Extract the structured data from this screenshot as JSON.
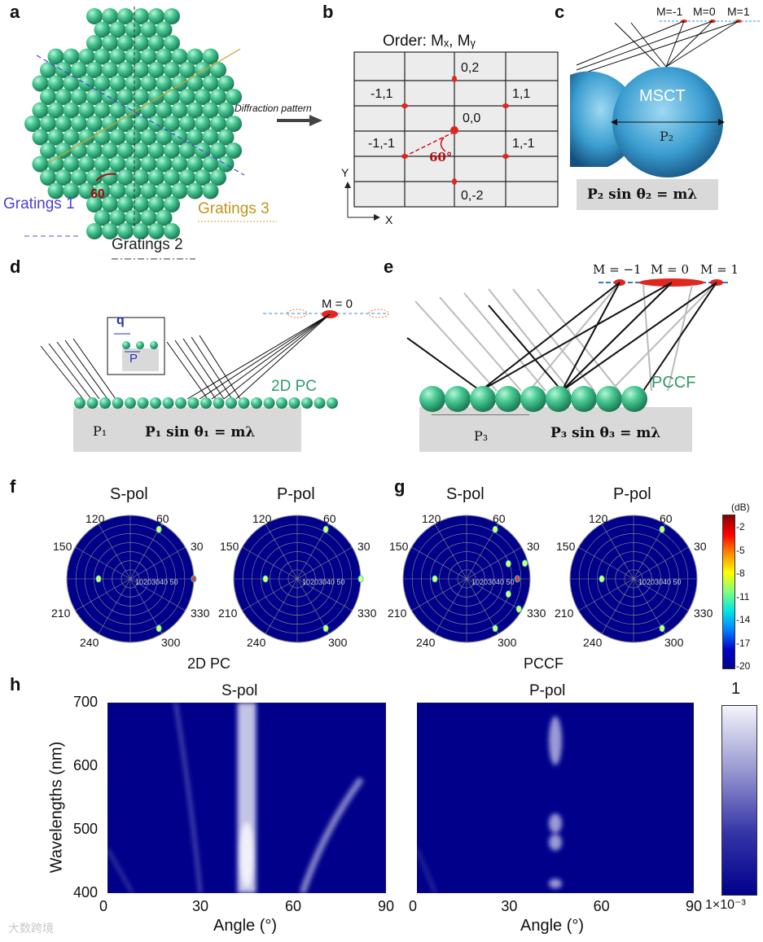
{
  "panels": {
    "a": "a",
    "b": "b",
    "c": "c",
    "d": "d",
    "e": "e",
    "f": "f",
    "g": "g",
    "h": "h"
  },
  "a": {
    "gratings1": "Gratings 1",
    "gratings2": "Gratings 2",
    "gratings3": "Gratings 3",
    "angle": "60"
  },
  "arrow_label": "Diffraction pattern",
  "b": {
    "title": "Order: Mₓ, Mᵧ",
    "points": [
      "0,2",
      "-1,1",
      "1,1",
      "0,0",
      "-1,-1",
      "1,-1",
      "0,-2"
    ],
    "angle": "60°",
    "yaxis": "Y",
    "xaxis": "X"
  },
  "c": {
    "m_labels": [
      "M=-1",
      "M=0",
      "M=1"
    ],
    "sphere": "MSCT",
    "period": "P₂",
    "equation": "P₂ sin θ₂ = mλ"
  },
  "d": {
    "m_label": "M = 0",
    "q": "q",
    "P": "P",
    "pc": "2D PC",
    "period": "P₁",
    "equation": "P₁ sin θ₁ = mλ"
  },
  "e": {
    "m_labels": [
      "M = −1",
      "M = 0",
      "M = 1"
    ],
    "pccf": "PCCF",
    "period": "P₃",
    "equation": "P₃ sin θ₃ = mλ"
  },
  "polar": {
    "titles": [
      "S-pol",
      "P-pol",
      "S-pol",
      "P-pol"
    ],
    "angles": [
      "120",
      "60",
      "150",
      "30",
      "210",
      "330",
      "240",
      "300"
    ],
    "radial": "10203040 50",
    "captions": [
      "2D PC",
      "PCCF"
    ],
    "colorbar": {
      "unit": "(dB)",
      "ticks": [
        "-2",
        "-5",
        "-8",
        "-11",
        "-14",
        "-17",
        "-20"
      ]
    }
  },
  "chart_data": [
    {
      "type": "heatmap",
      "title": "S-pol",
      "xlabel": "Angle (°)",
      "ylabel": "Wavelengths (nm)",
      "xlim": [
        0,
        90
      ],
      "ylim": [
        400,
        700
      ],
      "xticks": [
        "0",
        "30",
        "60",
        "90"
      ],
      "yticks": [
        "700",
        "600",
        "500",
        "400"
      ],
      "features": [
        {
          "name": "central band",
          "angle": 45,
          "from_nm": 400,
          "to_nm": 700,
          "intensity": "high"
        },
        {
          "name": "diagonal band right",
          "angle_start": 63,
          "angle_end": 82,
          "from_nm": 400,
          "to_nm": 580,
          "intensity": "medium"
        },
        {
          "name": "diagonal band left",
          "angle_start": 22,
          "angle_end": 30,
          "from_nm": 700,
          "to_nm": 400,
          "intensity": "low"
        }
      ]
    },
    {
      "type": "heatmap",
      "title": "P-pol",
      "xlabel": "Angle (°)",
      "ylabel": "",
      "xlim": [
        0,
        90
      ],
      "ylim": [
        400,
        700
      ],
      "xticks": [
        "0",
        "30",
        "60",
        "90"
      ],
      "yticks": [],
      "features": [
        {
          "name": "central spots",
          "angle": 45,
          "wavelengths_nm": [
            640,
            510,
            480,
            415
          ],
          "intensity": "medium"
        }
      ]
    }
  ],
  "heat_colorbar": {
    "max": "1",
    "min": "1×10⁻³"
  },
  "watermark": "大数跨境"
}
